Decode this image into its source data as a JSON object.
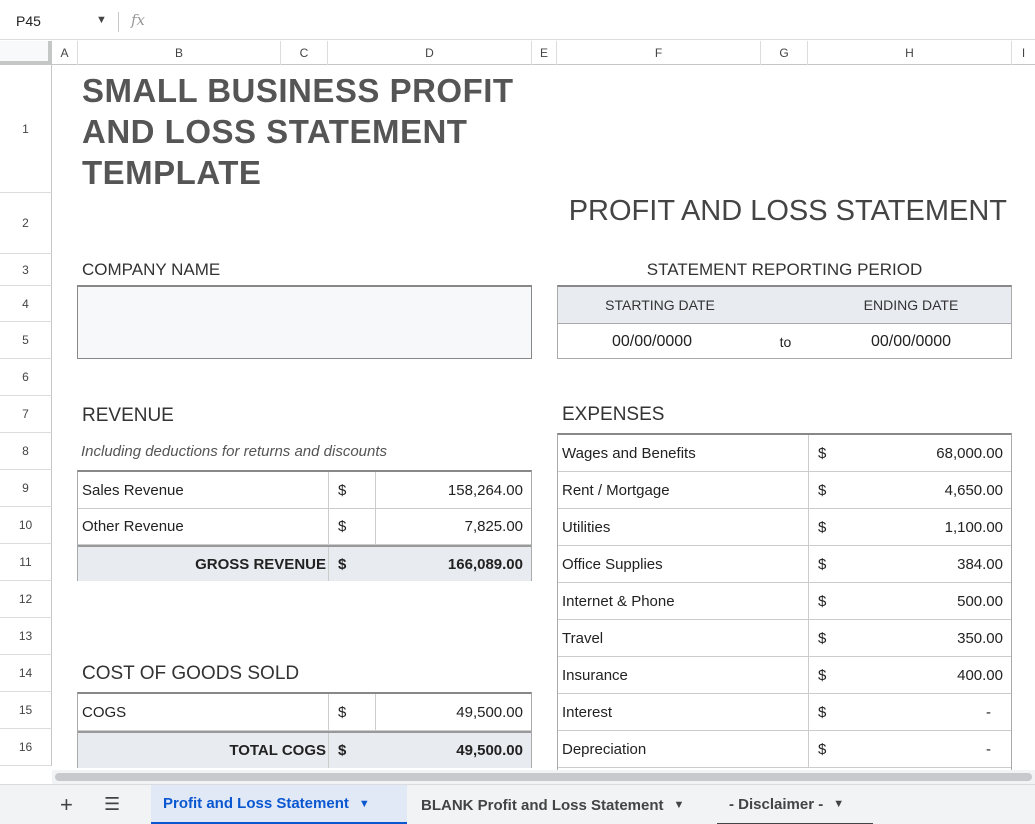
{
  "formula_bar": {
    "cell_ref": "P45",
    "fx_label": "fx"
  },
  "columns": [
    "A",
    "B",
    "C",
    "D",
    "E",
    "F",
    "G",
    "H",
    "I"
  ],
  "rows": [
    "1",
    "2",
    "3",
    "4",
    "5",
    "6",
    "7",
    "8",
    "9",
    "10",
    "11",
    "12",
    "13",
    "14",
    "15",
    "16"
  ],
  "title_lines": [
    "SMALL BUSINESS PROFIT",
    "AND LOSS STATEMENT",
    "TEMPLATE"
  ],
  "pl_heading": "PROFIT AND LOSS STATEMENT",
  "company": {
    "label": "COMPANY NAME",
    "value": ""
  },
  "period": {
    "title": "STATEMENT REPORTING PERIOD",
    "start_label": "STARTING DATE",
    "end_label": "ENDING DATE",
    "start_value": "00/00/0000",
    "to": "to",
    "end_value": "00/00/0000"
  },
  "revenue": {
    "label": "REVENUE",
    "note": "Including deductions for returns and discounts",
    "rows": [
      {
        "name": "Sales Revenue",
        "currency": "$",
        "amount": "158,264.00"
      },
      {
        "name": "Other Revenue",
        "currency": "$",
        "amount": "7,825.00"
      }
    ],
    "total": {
      "name": "GROSS REVENUE",
      "currency": "$",
      "amount": "166,089.00"
    }
  },
  "cogs": {
    "label": "COST OF GOODS SOLD",
    "rows": [
      {
        "name": "COGS",
        "currency": "$",
        "amount": "49,500.00"
      }
    ],
    "total": {
      "name": "TOTAL COGS",
      "currency": "$",
      "amount": "49,500.00"
    }
  },
  "expenses": {
    "label": "EXPENSES",
    "rows": [
      {
        "name": "Wages and Benefits",
        "currency": "$",
        "amount": "68,000.00"
      },
      {
        "name": "Rent / Mortgage",
        "currency": "$",
        "amount": "4,650.00"
      },
      {
        "name": "Utilities",
        "currency": "$",
        "amount": "1,100.00"
      },
      {
        "name": "Office Supplies",
        "currency": "$",
        "amount": "384.00"
      },
      {
        "name": "Internet & Phone",
        "currency": "$",
        "amount": "500.00"
      },
      {
        "name": "Travel",
        "currency": "$",
        "amount": "350.00"
      },
      {
        "name": "Insurance",
        "currency": "$",
        "amount": "400.00"
      },
      {
        "name": "Interest",
        "currency": "$",
        "amount": "-"
      },
      {
        "name": "Depreciation",
        "currency": "$",
        "amount": "-"
      }
    ]
  },
  "sheet_tabs": [
    {
      "label": "Profit and Loss Statement",
      "active": true
    },
    {
      "label": "BLANK Profit and Loss Statement",
      "active": false
    },
    {
      "label": "- Disclaimer -",
      "active": false
    }
  ],
  "icons": {
    "add": "plus-icon",
    "all_sheets": "menu-icon",
    "dropdown": "caret-down-icon"
  }
}
